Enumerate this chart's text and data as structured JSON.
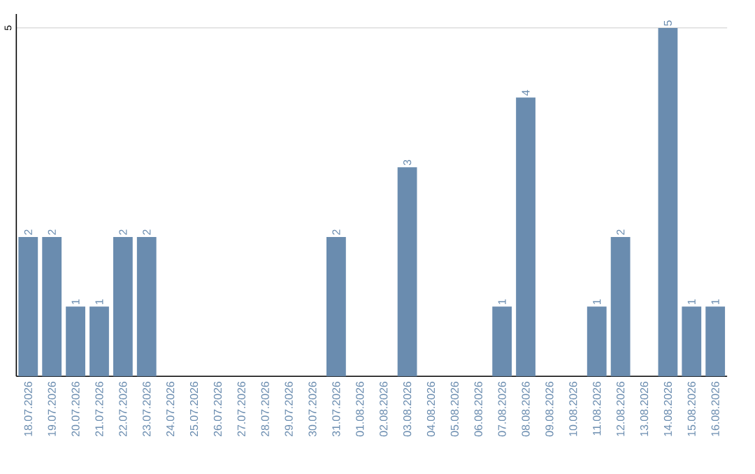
{
  "chart_data": {
    "type": "bar",
    "categories": [
      "18.07.2026",
      "19.07.2026",
      "20.07.2026",
      "21.07.2026",
      "22.07.2026",
      "23.07.2026",
      "24.07.2026",
      "25.07.2026",
      "26.07.2026",
      "27.07.2026",
      "28.07.2026",
      "29.07.2026",
      "30.07.2026",
      "31.07.2026",
      "01.08.2026",
      "02.08.2026",
      "03.08.2026",
      "04.08.2026",
      "05.08.2026",
      "06.08.2026",
      "07.08.2026",
      "08.08.2026",
      "09.08.2026",
      "10.08.2026",
      "11.08.2026",
      "12.08.2026",
      "13.08.2026",
      "14.08.2026",
      "15.08.2026",
      "16.08.2026"
    ],
    "values": [
      2,
      2,
      1,
      1,
      2,
      2,
      0,
      0,
      0,
      0,
      0,
      0,
      0,
      2,
      0,
      0,
      3,
      0,
      0,
      0,
      1,
      4,
      0,
      0,
      1,
      2,
      0,
      5,
      1,
      1
    ],
    "value_labels": [
      "2",
      "2",
      "1",
      "1",
      "2",
      "2",
      null,
      null,
      null,
      null,
      null,
      null,
      null,
      "2",
      null,
      null,
      "3",
      null,
      null,
      null,
      "1",
      "4",
      null,
      null,
      "1",
      "2",
      null,
      "5",
      "1",
      "1"
    ],
    "color": "#6a8caf",
    "ylim": [
      0,
      5.2
    ],
    "yticks": [
      5
    ],
    "grid": "y"
  }
}
